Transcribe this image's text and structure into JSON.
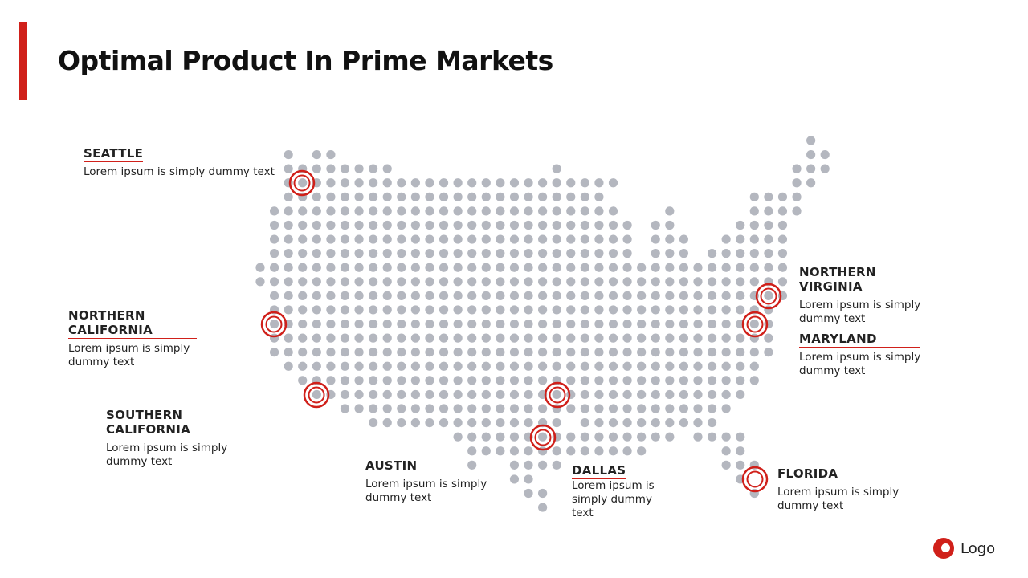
{
  "title": "Optimal Product In Prime Markets",
  "locations": [
    {
      "name": "SEATTLE",
      "text": "Lorem ipsum is simply dummy text"
    },
    {
      "name": "NORTHERN CALIFORNIA",
      "text": "Lorem ipsum is simply dummy text"
    },
    {
      "name": "SOUTHERN CALIFORNIA",
      "text": "Lorem ipsum is simply dummy text"
    },
    {
      "name": "AUSTIN",
      "text": "Lorem ipsum is simply dummy text"
    },
    {
      "name": "DALLAS",
      "text": "Lorem ipsum is simply dummy text"
    },
    {
      "name": "NORTHERN VIRGINIA",
      "text": "Lorem ipsum is simply dummy text"
    },
    {
      "name": "MARYLAND",
      "text": "Lorem ipsum is simply dummy text"
    },
    {
      "name": "FLORIDA",
      "text": "Lorem ipsum is simply dummy text"
    }
  ],
  "logo": "Logo"
}
